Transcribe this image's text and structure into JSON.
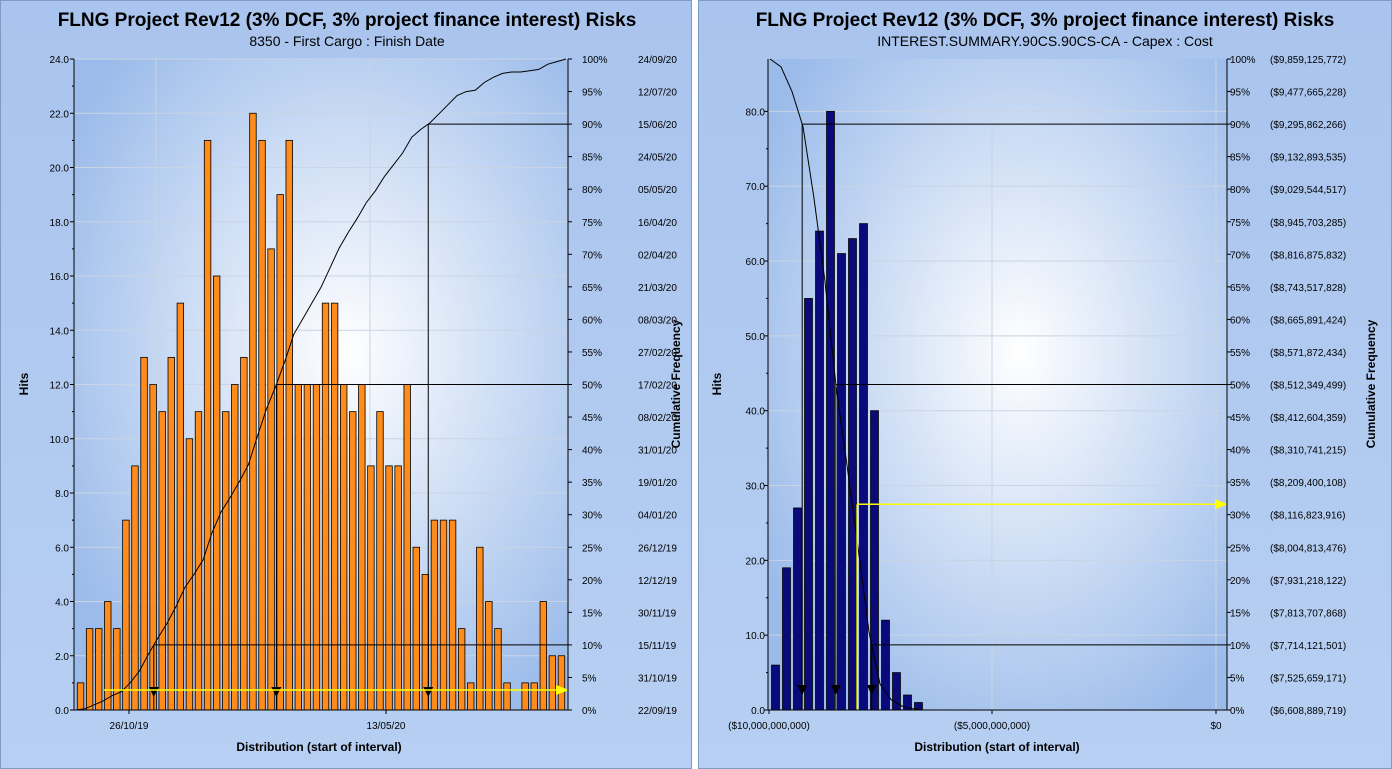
{
  "chart_data": [
    {
      "type": "bar",
      "title": "FLNG Project Rev12 (3% DCF, 3% project finance interest) Risks",
      "subtitle": "8350 - First Cargo : Finish Date",
      "xlabel": "Distribution (start of interval)",
      "ylabel": "Hits",
      "y2label": "Cumulative Frequency",
      "ylim": [
        0,
        24
      ],
      "yticks": [
        "0.0",
        "2.0",
        "4.0",
        "6.0",
        "8.0",
        "10.0",
        "12.0",
        "14.0",
        "16.0",
        "18.0",
        "20.0",
        "22.0",
        "24.0"
      ],
      "x_tick_labels": [
        "26/10/19",
        "13/05/20"
      ],
      "bar_color": "#ff8c1a",
      "values": [
        1,
        3,
        3,
        4,
        3,
        7,
        9,
        13,
        12,
        11,
        13,
        15,
        10,
        11,
        21,
        16,
        11,
        12,
        13,
        22,
        21,
        17,
        19,
        21,
        12,
        12,
        12,
        15,
        15,
        12,
        11,
        12,
        9,
        11,
        9,
        9,
        12,
        6,
        5,
        7,
        7,
        7,
        3,
        1,
        6,
        4,
        3,
        1,
        0,
        1,
        1,
        4,
        2,
        2
      ],
      "cumulative_labels": [
        {
          "pct": "0%",
          "value": "22/09/19"
        },
        {
          "pct": "5%",
          "value": "31/10/19"
        },
        {
          "pct": "10%",
          "value": "15/11/19"
        },
        {
          "pct": "15%",
          "value": "30/11/19"
        },
        {
          "pct": "20%",
          "value": "12/12/19"
        },
        {
          "pct": "25%",
          "value": "26/12/19"
        },
        {
          "pct": "30%",
          "value": "04/01/20"
        },
        {
          "pct": "35%",
          "value": "19/01/20"
        },
        {
          "pct": "40%",
          "value": "31/01/20"
        },
        {
          "pct": "45%",
          "value": "08/02/20"
        },
        {
          "pct": "50%",
          "value": "17/02/20"
        },
        {
          "pct": "55%",
          "value": "27/02/20"
        },
        {
          "pct": "60%",
          "value": "08/03/20"
        },
        {
          "pct": "65%",
          "value": "21/03/20"
        },
        {
          "pct": "70%",
          "value": "02/04/20"
        },
        {
          "pct": "75%",
          "value": "16/04/20"
        },
        {
          "pct": "80%",
          "value": "05/05/20"
        },
        {
          "pct": "85%",
          "value": "24/05/20"
        },
        {
          "pct": "90%",
          "value": "15/06/20"
        },
        {
          "pct": "95%",
          "value": "12/07/20"
        },
        {
          "pct": "100%",
          "value": "24/09/20"
        }
      ],
      "markers_at_bins": [
        7.5,
        20,
        38.5
      ],
      "reference_lines": [
        10,
        50,
        90
      ],
      "arrow_level": 0.25,
      "arrow_color": "#ffff00"
    },
    {
      "type": "bar",
      "title": "FLNG Project Rev12 (3% DCF, 3% project finance interest) Risks",
      "subtitle": "INTEREST.SUMMARY.90CS.90CS-CA - Capex : Cost",
      "xlabel": "Distribution (start of interval)",
      "ylabel": "Hits",
      "y2label": "Cumulative Frequency",
      "ylim": [
        0,
        87
      ],
      "yticks": [
        "0.0",
        "10.0",
        "20.0",
        "30.0",
        "40.0",
        "50.0",
        "60.0",
        "70.0",
        "80.0"
      ],
      "x_tick_labels": [
        "($10,000,000,000)",
        "($5,000,000,000)",
        "$0"
      ],
      "bar_color": "#0a0a7a",
      "values": [
        6,
        19,
        27,
        55,
        64,
        80,
        61,
        63,
        65,
        40,
        12,
        5,
        2,
        1
      ],
      "cumulative_labels": [
        {
          "pct": "0%",
          "value": "($6,608,889,719)"
        },
        {
          "pct": "5%",
          "value": "($7,525,659,171)"
        },
        {
          "pct": "10%",
          "value": "($7,714,121,501)"
        },
        {
          "pct": "15%",
          "value": "($7,813,707,868)"
        },
        {
          "pct": "20%",
          "value": "($7,931,218,122)"
        },
        {
          "pct": "25%",
          "value": "($8,004,813,476)"
        },
        {
          "pct": "30%",
          "value": "($8,116,823,916)"
        },
        {
          "pct": "35%",
          "value": "($8,209,400,108)"
        },
        {
          "pct": "40%",
          "value": "($8,310,741,215)"
        },
        {
          "pct": "45%",
          "value": "($8,412,604,359)"
        },
        {
          "pct": "50%",
          "value": "($8,512,349,499)"
        },
        {
          "pct": "55%",
          "value": "($8,571,872,434)"
        },
        {
          "pct": "60%",
          "value": "($8,665,891,424)"
        },
        {
          "pct": "65%",
          "value": "($8,743,517,828)"
        },
        {
          "pct": "70%",
          "value": "($8,816,875,832)"
        },
        {
          "pct": "75%",
          "value": "($8,945,703,285)"
        },
        {
          "pct": "80%",
          "value": "($9,029,544,517)"
        },
        {
          "pct": "85%",
          "value": "($9,132,893,535)"
        },
        {
          "pct": "90%",
          "value": "($9,295,862,266)"
        },
        {
          "pct": "95%",
          "value": "($9,477,665,228)"
        },
        {
          "pct": "100%",
          "value": "($9,859,125,772)"
        }
      ],
      "reference_lines": [
        10,
        50,
        90
      ],
      "arrow_level": 27.5,
      "arrow_color": "#ffff00"
    }
  ]
}
